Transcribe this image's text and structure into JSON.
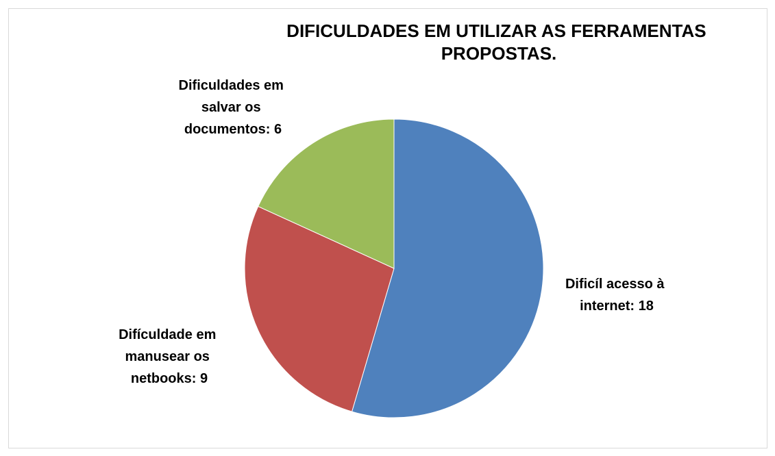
{
  "chart_data": {
    "type": "pie",
    "title": "DIFICULDADES EM UTILIZAR AS FERRAMENTAS PROPOSTAS.",
    "values": [
      18,
      9,
      6
    ],
    "value_labels": [
      "Dificíl acesso à internet: 18",
      "Difículdade em manusear os netbooks: 9",
      "Dificuldades em salvar os documentos: 6"
    ],
    "colors": [
      "#4f81bd",
      "#c0504d",
      "#9bbb59"
    ]
  }
}
